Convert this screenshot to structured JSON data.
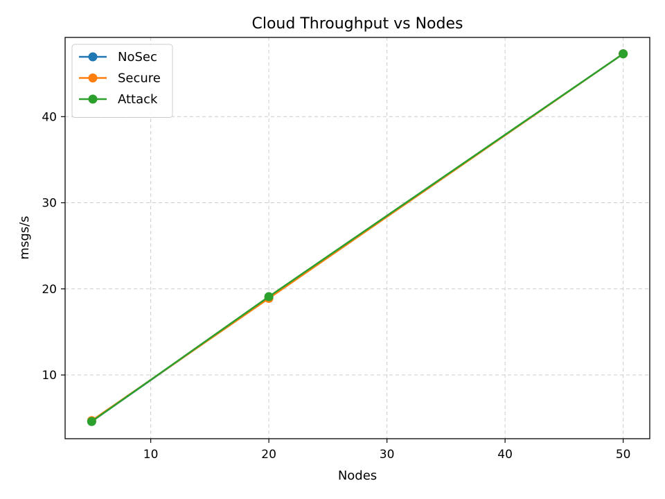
{
  "chart_data": {
    "type": "line",
    "title": "Cloud Throughput vs Nodes",
    "xlabel": "Nodes",
    "ylabel": "msgs/s",
    "x": [
      5,
      20,
      50
    ],
    "xlim": [
      2.75,
      52.25
    ],
    "ylim": [
      2.6,
      49.2
    ],
    "xticks": [
      10,
      20,
      30,
      40,
      50
    ],
    "yticks": [
      10,
      20,
      30,
      40
    ],
    "grid": true,
    "legend_position": "top-left",
    "series": [
      {
        "name": "NoSec",
        "color": "#1f77b4",
        "values": [
          4.6,
          19.0,
          47.3
        ]
      },
      {
        "name": "Secure",
        "color": "#ff7f0e",
        "values": [
          4.7,
          18.9,
          47.3
        ]
      },
      {
        "name": "Attack",
        "color": "#2ca02c",
        "values": [
          4.6,
          19.1,
          47.3
        ]
      }
    ]
  }
}
